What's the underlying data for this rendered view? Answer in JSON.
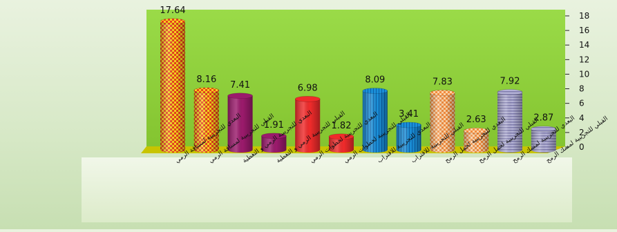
{
  "chart_data": {
    "type": "bar",
    "title": "",
    "xlabel": "",
    "ylabel": "",
    "ylim": [
      0,
      18
    ],
    "yticks": [
      "0",
      "2",
      "4",
      "6",
      "8",
      "10",
      "12",
      "14",
      "16",
      "18"
    ],
    "grid": false,
    "legend": "none",
    "categories": [
      "البعدي للتجريبية لمسافة الرمي",
      "القبلي للتجريبية لمسافة الرمي",
      "البعدي للتجريبية الرمي و التغطية",
      "القبلي للتجريبية الرمي و التغطية",
      "البعدي للتجريبية لخطوات الرمي",
      "القبلي للتجريبية لخطوات الرمي",
      "البعدي للتجريبية للاقتراب",
      "القبلي للتجريبية للاقتراب",
      "البعدي للتجريبية لحمل الرمح",
      "القبلي للتجريبية لحمل الرمح",
      "البعدي للتجريبية لمسك الرمح",
      "القبلي للتجريبية لمسك الرمح"
    ],
    "values": [
      17.64,
      8.16,
      7.41,
      1.91,
      6.98,
      1.82,
      8.09,
      3.41,
      7.83,
      2.63,
      7.92,
      2.87
    ],
    "value_labels": [
      "17.64",
      "8.16",
      "7.41",
      "1.91",
      "6.98",
      "1.82",
      "8.09",
      "3.41",
      "7.83",
      "2.63",
      "7.92",
      "2.87"
    ],
    "bar_styles": [
      "yellow-red-check",
      "yellow-red-check",
      "purple",
      "purple",
      "red",
      "red",
      "blue",
      "blue",
      "orange-check",
      "orange-check",
      "lavender-stripe",
      "lavender-stripe"
    ],
    "colors": {
      "plot_wall": "#8fd13a",
      "side_wall": "#3f6b1e",
      "floor": "#c8c400",
      "page_bg": "#dcebcc"
    }
  }
}
